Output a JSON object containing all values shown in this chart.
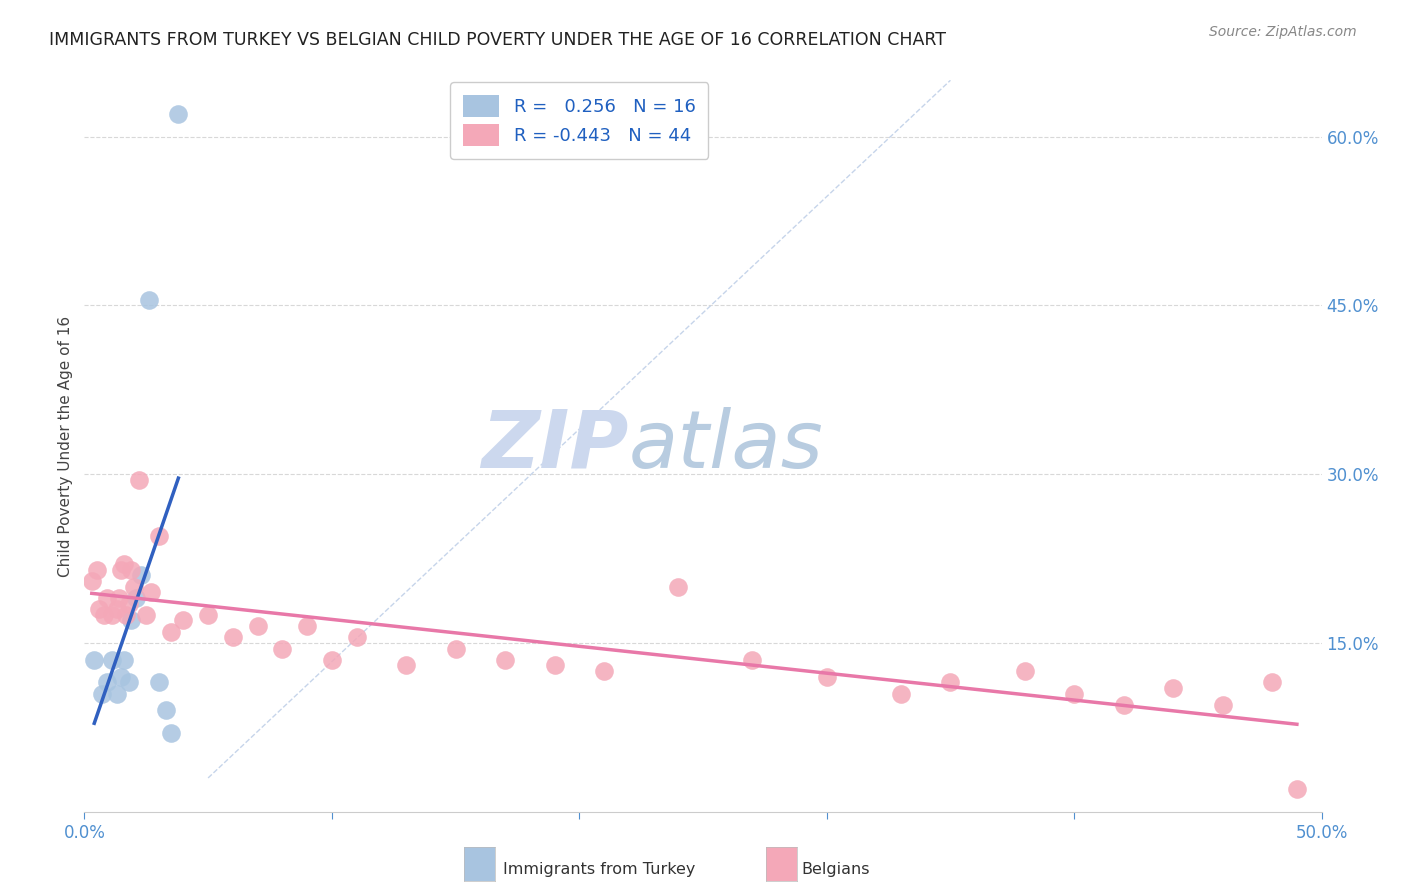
{
  "title": "IMMIGRANTS FROM TURKEY VS BELGIAN CHILD POVERTY UNDER THE AGE OF 16 CORRELATION CHART",
  "source": "Source: ZipAtlas.com",
  "ylabel": "Child Poverty Under the Age of 16",
  "xlim": [
    0.0,
    0.5
  ],
  "ylim": [
    0.0,
    0.65
  ],
  "blue_R": 0.256,
  "blue_N": 16,
  "pink_R": -0.443,
  "pink_N": 44,
  "blue_scatter_x": [
    0.004,
    0.007,
    0.009,
    0.011,
    0.013,
    0.015,
    0.016,
    0.018,
    0.019,
    0.021,
    0.023,
    0.026,
    0.03,
    0.033,
    0.035,
    0.038
  ],
  "blue_scatter_y": [
    0.135,
    0.105,
    0.115,
    0.135,
    0.105,
    0.12,
    0.135,
    0.115,
    0.17,
    0.19,
    0.21,
    0.455,
    0.115,
    0.09,
    0.07,
    0.62
  ],
  "pink_scatter_x": [
    0.003,
    0.005,
    0.006,
    0.008,
    0.009,
    0.011,
    0.013,
    0.014,
    0.015,
    0.016,
    0.017,
    0.018,
    0.019,
    0.02,
    0.022,
    0.025,
    0.027,
    0.03,
    0.035,
    0.04,
    0.05,
    0.06,
    0.07,
    0.08,
    0.09,
    0.1,
    0.11,
    0.13,
    0.15,
    0.17,
    0.19,
    0.21,
    0.24,
    0.27,
    0.3,
    0.33,
    0.35,
    0.38,
    0.4,
    0.42,
    0.44,
    0.46,
    0.48,
    0.49
  ],
  "pink_scatter_y": [
    0.205,
    0.215,
    0.18,
    0.175,
    0.19,
    0.175,
    0.18,
    0.19,
    0.215,
    0.22,
    0.175,
    0.185,
    0.215,
    0.2,
    0.295,
    0.175,
    0.195,
    0.245,
    0.16,
    0.17,
    0.175,
    0.155,
    0.165,
    0.145,
    0.165,
    0.135,
    0.155,
    0.13,
    0.145,
    0.135,
    0.13,
    0.125,
    0.2,
    0.135,
    0.12,
    0.105,
    0.115,
    0.125,
    0.105,
    0.095,
    0.11,
    0.095,
    0.115,
    0.02
  ],
  "blue_color": "#a8c4e0",
  "pink_color": "#f4a8b8",
  "blue_line_color": "#3060c0",
  "pink_line_color": "#e878a8",
  "diagonal_color": "#c0d0e8",
  "background_color": "#ffffff",
  "grid_color": "#d8d8d8",
  "legend_edge_color": "#cccccc",
  "axis_color": "#5090d0",
  "title_color": "#222222",
  "source_color": "#888888",
  "ylabel_color": "#444444"
}
